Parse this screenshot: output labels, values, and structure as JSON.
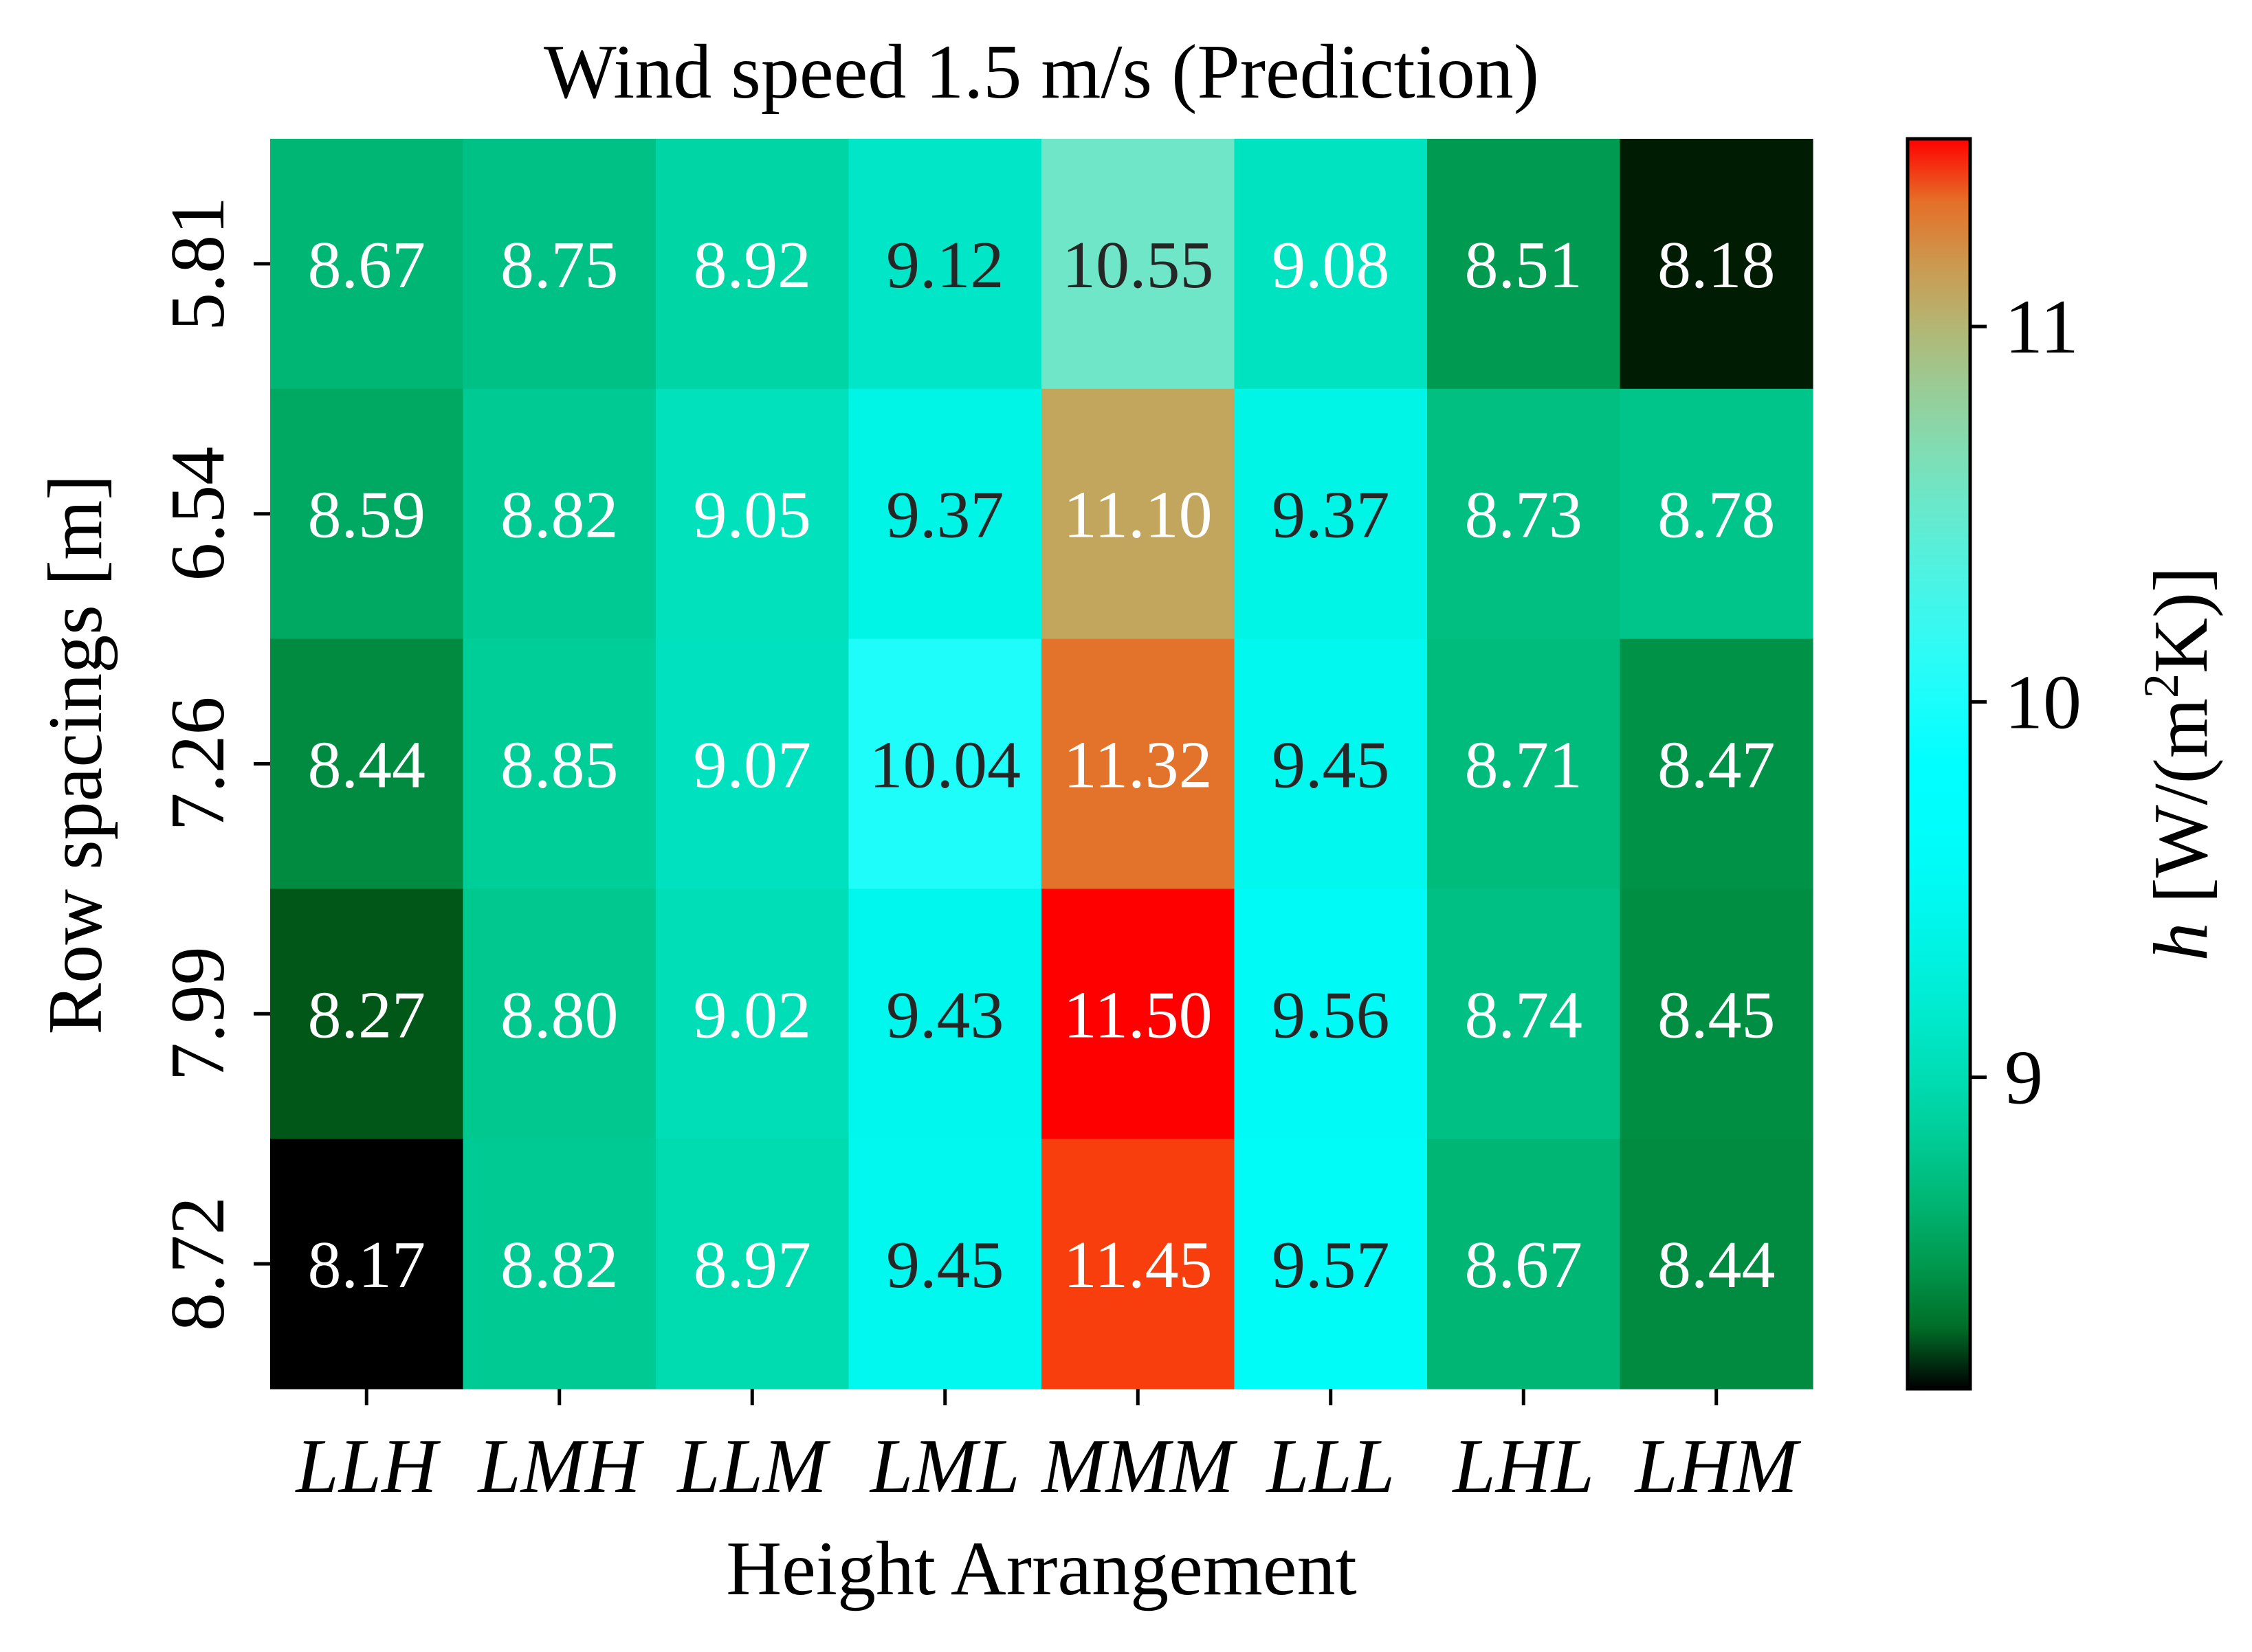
{
  "chart_data": {
    "type": "heatmap",
    "title": "Wind speed 1.5 m/s (Prediction)",
    "xlabel": "Height Arrangement",
    "ylabel": "Row spacings [m]",
    "x_categories": [
      "LLH",
      "LMH",
      "LLM",
      "LML",
      "MMM",
      "LLL",
      "LHL",
      "LHM"
    ],
    "y_categories": [
      "5.81",
      "6.54",
      "7.26",
      "7.99",
      "8.72"
    ],
    "values": [
      [
        8.67,
        8.75,
        8.92,
        9.12,
        10.55,
        9.08,
        8.51,
        8.18
      ],
      [
        8.59,
        8.82,
        9.05,
        9.37,
        11.1,
        9.37,
        8.73,
        8.78
      ],
      [
        8.44,
        8.85,
        9.07,
        10.04,
        11.32,
        9.45,
        8.71,
        8.47
      ],
      [
        8.27,
        8.8,
        9.02,
        9.43,
        11.5,
        9.56,
        8.74,
        8.45
      ],
      [
        8.17,
        8.82,
        8.97,
        9.45,
        11.45,
        9.57,
        8.67,
        8.44
      ]
    ],
    "value_labels": [
      [
        "8.67",
        "8.75",
        "8.92",
        "9.12",
        "10.55",
        "9.08",
        "8.51",
        "8.18"
      ],
      [
        "8.59",
        "8.82",
        "9.05",
        "9.37",
        "11.10",
        "9.37",
        "8.73",
        "8.78"
      ],
      [
        "8.44",
        "8.85",
        "9.07",
        "10.04",
        "11.32",
        "9.45",
        "8.71",
        "8.47"
      ],
      [
        "8.27",
        "8.80",
        "9.02",
        "9.43",
        "11.50",
        "9.56",
        "8.74",
        "8.45"
      ],
      [
        "8.17",
        "8.82",
        "8.97",
        "9.45",
        "11.45",
        "9.57",
        "8.67",
        "8.44"
      ]
    ],
    "colorbar": {
      "label_italic": "h",
      "label_rest": " [W/(m",
      "label_sup": "2",
      "label_end": "K)]",
      "range": [
        8.17,
        11.5
      ],
      "ticks": [
        9,
        10,
        11
      ],
      "tick_labels": [
        "9",
        "10",
        "11"
      ],
      "colormap": "rainbow"
    },
    "annotation_colors": {
      "dark": "#262626",
      "light": "#ffffff"
    }
  }
}
